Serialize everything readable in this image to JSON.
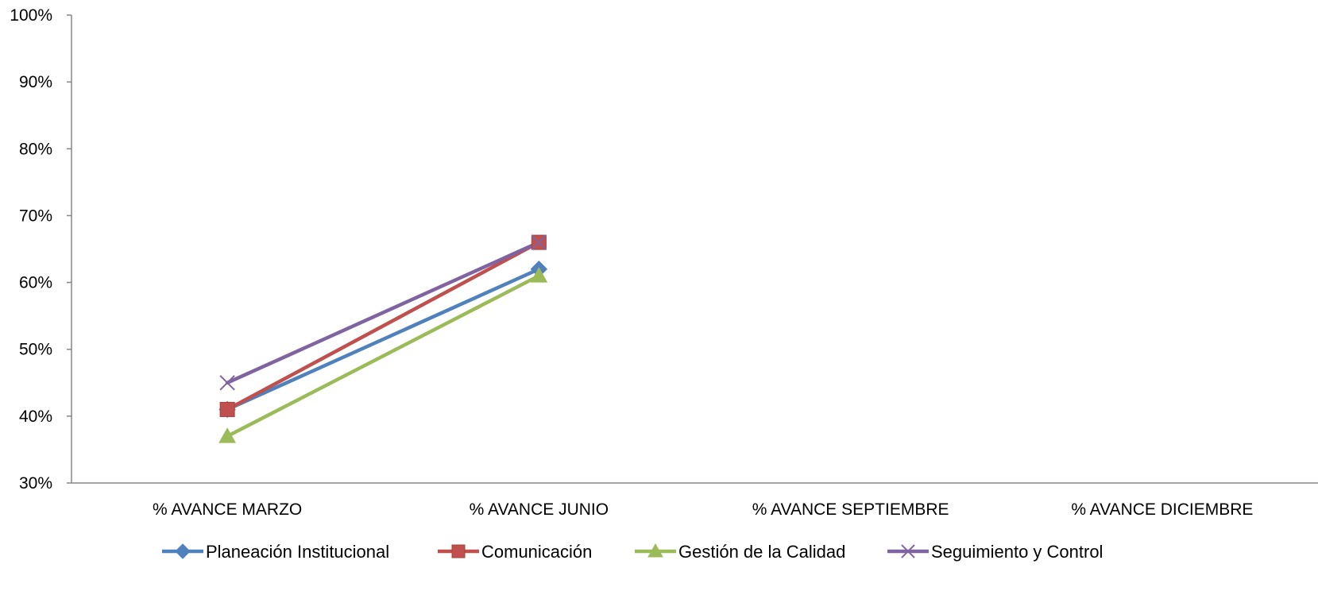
{
  "chart_data": {
    "type": "line",
    "categories": [
      "% AVANCE MARZO",
      "% AVANCE JUNIO",
      "% AVANCE SEPTIEMBRE",
      "% AVANCE DICIEMBRE"
    ],
    "ylim": [
      0.3,
      1.0
    ],
    "y_ticks": [
      "30%",
      "40%",
      "50%",
      "60%",
      "70%",
      "80%",
      "90%",
      "100%"
    ],
    "y_tick_values": [
      0.3,
      0.4,
      0.5,
      0.6,
      0.7,
      0.8,
      0.9,
      1.0
    ],
    "grid": false,
    "legend_position": "bottom",
    "series": [
      {
        "name": "Planeación Institucional",
        "values": [
          0.41,
          0.62,
          null,
          null
        ],
        "color": "#4F81BD",
        "marker": "diamond"
      },
      {
        "name": "Comunicación",
        "values": [
          0.41,
          0.66,
          null,
          null
        ],
        "color": "#C0504D",
        "marker": "square"
      },
      {
        "name": "Gestión de la Calidad",
        "values": [
          0.37,
          0.61,
          null,
          null
        ],
        "color": "#9BBB59",
        "marker": "triangle"
      },
      {
        "name": "Seguimiento y Control",
        "values": [
          0.45,
          0.66,
          null,
          null
        ],
        "color": "#8064A2",
        "marker": "x"
      }
    ]
  }
}
